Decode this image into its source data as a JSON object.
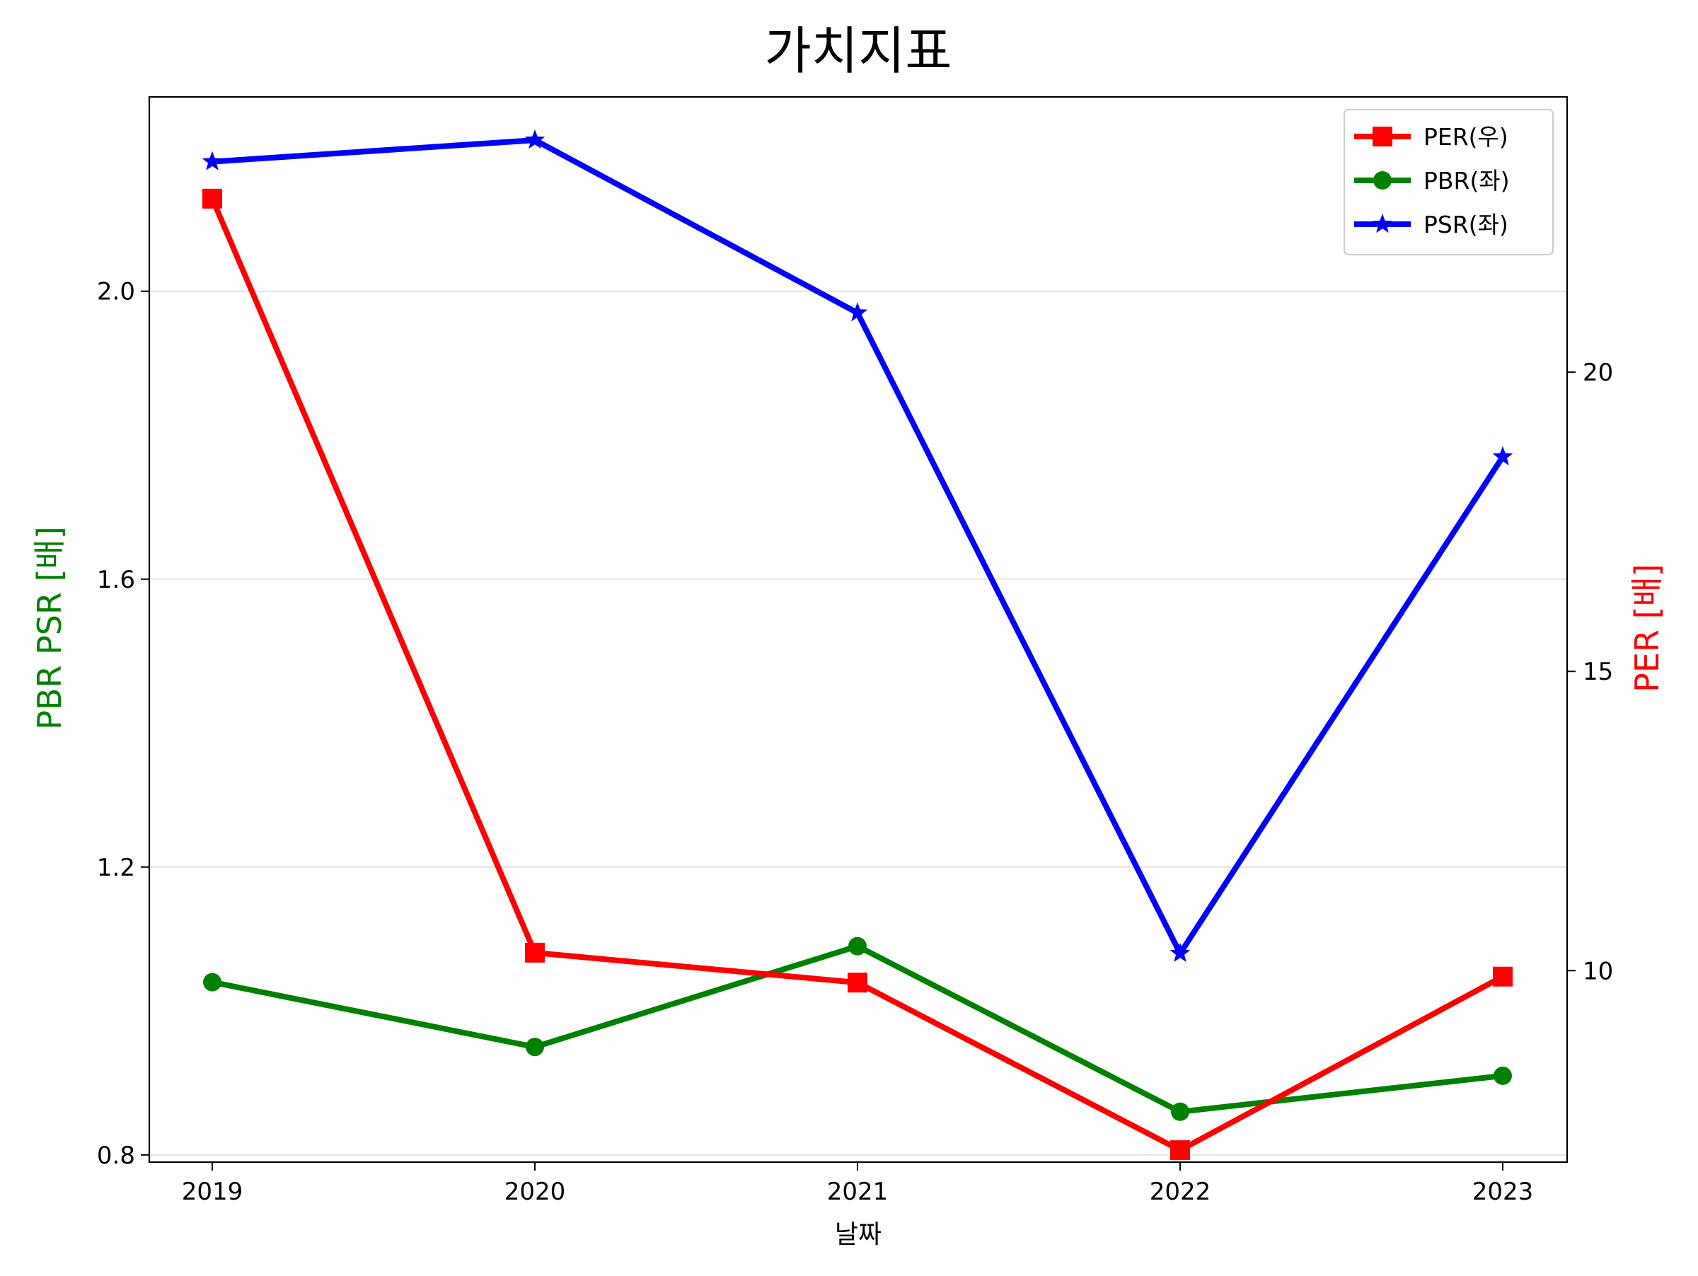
{
  "chart_data": {
    "type": "line",
    "title": "가치지표",
    "xlabel": "날짜",
    "ylabel_left": "PBR PSR [배]",
    "ylabel_right": "PER [배]",
    "x": [
      "2019",
      "2020",
      "2021",
      "2022",
      "2023"
    ],
    "ylim_left": [
      0.79,
      2.27
    ],
    "yticks_left": [
      "0.8",
      "1.2",
      "1.6",
      "2.0"
    ],
    "ylim_right": [
      6.8,
      24.6
    ],
    "yticks_right": [
      "10",
      "15",
      "20"
    ],
    "grid": "horizontal (left axis)",
    "legend_position": "upper right",
    "series": [
      {
        "name": "PER(우)",
        "axis": "right",
        "color": "#ff0000",
        "marker": "square",
        "values": [
          22.9,
          10.3,
          9.8,
          7.0,
          9.9
        ]
      },
      {
        "name": "PBR(좌)",
        "axis": "left",
        "color": "#008000",
        "marker": "circle",
        "values": [
          1.04,
          0.95,
          1.09,
          0.86,
          0.91
        ]
      },
      {
        "name": "PSR(좌)",
        "axis": "left",
        "color": "#0000ff",
        "marker": "star",
        "values": [
          2.18,
          2.21,
          1.97,
          1.08,
          1.77
        ]
      }
    ],
    "colors": {
      "left_label": "#008000",
      "right_label": "#ff0000"
    }
  }
}
